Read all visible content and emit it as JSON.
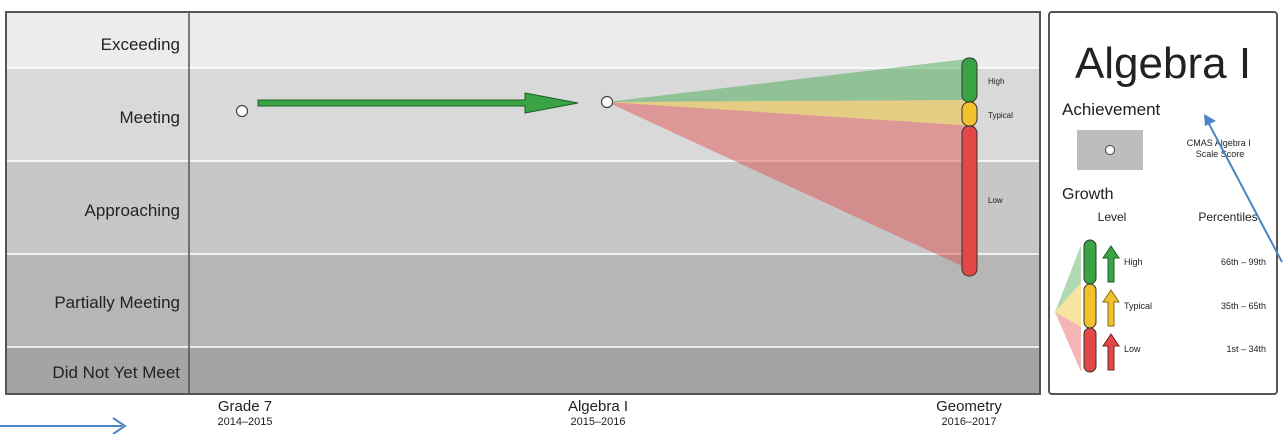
{
  "chart_data": {
    "type": "line",
    "levels": [
      "Exceeding",
      "Meeting",
      "Approaching",
      "Partially Meeting",
      "Did Not Yet Meet"
    ],
    "x_labels": [
      {
        "name": "Grade 7",
        "years": "2014–2015"
      },
      {
        "name": "Algebra I",
        "years": "2015–2016"
      },
      {
        "name": "Geometry",
        "years": "2016–2017"
      }
    ],
    "achievement_points": [
      {
        "x": "Grade 7",
        "level": "Meeting"
      },
      {
        "x": "Algebra I",
        "level": "Meeting"
      }
    ],
    "growth_projection": [
      {
        "level": "High",
        "color": "#3aa346"
      },
      {
        "level": "Typical",
        "color": "#f2c12e"
      },
      {
        "level": "Low",
        "color": "#e24848"
      }
    ]
  },
  "legend": {
    "title": "Algebra I",
    "achievement_heading": "Achievement",
    "score_label": "CMAS Algebra I Scale Score",
    "growth_heading": "Growth",
    "level_header": "Level",
    "percentiles_header": "Percentiles",
    "rows": [
      {
        "level": "High",
        "range": "66th – 99th",
        "color": "#3aa346"
      },
      {
        "level": "Typical",
        "range": "35th – 65th",
        "color": "#f2c12e"
      },
      {
        "level": "Low",
        "range": "1st – 34th",
        "color": "#e24848"
      }
    ]
  },
  "colors": {
    "band_exceeding": "#ececec",
    "band_meeting": "#d9d9d9",
    "band_approaching": "#c7c7c7",
    "band_partial": "#b6b6b6",
    "band_notmeet": "#a4a4a4",
    "arrow": "#3aa346",
    "annotation": "#4a86c5"
  }
}
